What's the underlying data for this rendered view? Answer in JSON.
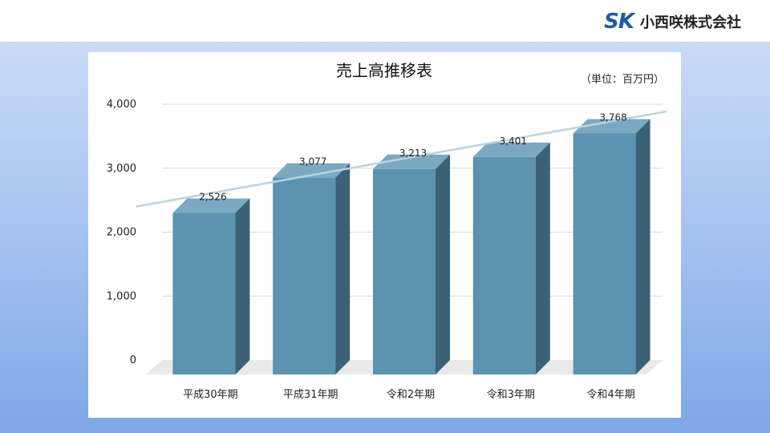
{
  "header": {
    "logo_mark": "SK",
    "company_name": "小西咲株式会社"
  },
  "colors": {
    "bar_front": "#5b93b0",
    "bar_top": "#7aa9c1",
    "bar_side": "#3a6175",
    "trendline": "#b9d4df",
    "background_gradient_top": "#c9daf6",
    "background_gradient_bottom": "#7ea6e8"
  },
  "chart_data": {
    "type": "bar",
    "title": "売上高推移表",
    "unit_label": "（単位：百万円）",
    "categories": [
      "平成30年期",
      "平成31年期",
      "令和2年期",
      "令和3年期",
      "令和4年期"
    ],
    "values": [
      2526,
      3077,
      3213,
      3401,
      3768
    ],
    "value_labels": [
      "2,526",
      "3,077",
      "3,213",
      "3,401",
      "3,768"
    ],
    "y_ticks": [
      "0",
      "1,000",
      "2,000",
      "3,000",
      "4,000"
    ],
    "ylim": [
      0,
      4000
    ],
    "grid": true,
    "trendline": true,
    "style": "3d-column",
    "xlabel": "",
    "ylabel": ""
  }
}
